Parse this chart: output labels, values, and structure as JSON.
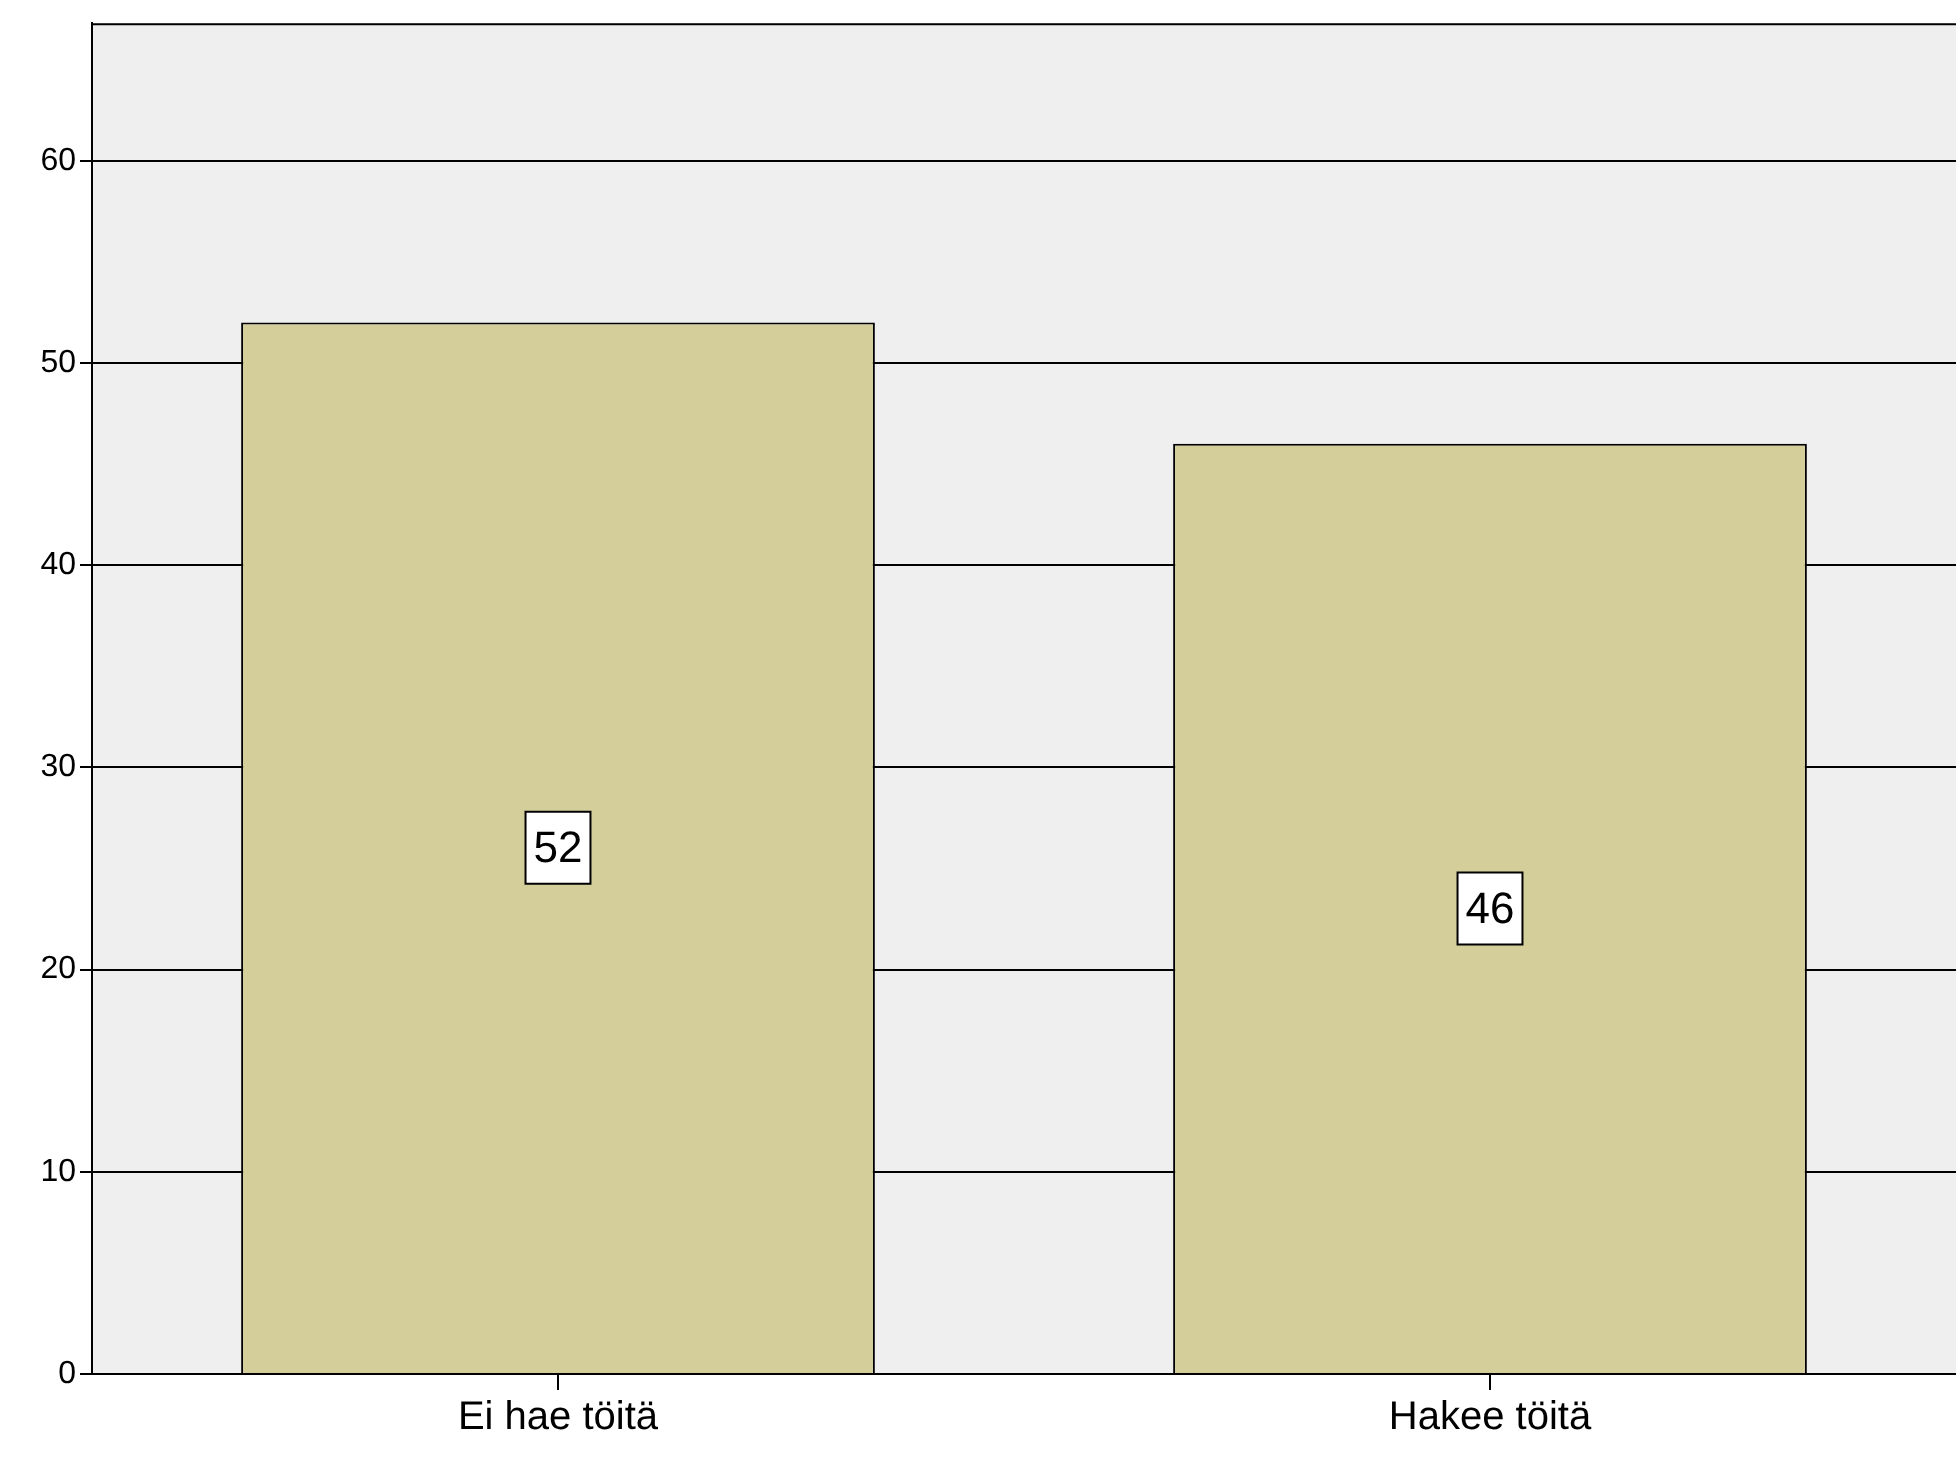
{
  "chart_data": {
    "type": "bar",
    "categories": [
      "Ei hae töitä",
      "Hakee töitä"
    ],
    "values": [
      52,
      46
    ],
    "color": "#d3ce9a",
    "ylim": [
      0,
      66.8
    ],
    "yticks": [
      0,
      10,
      20,
      30,
      40,
      50,
      60
    ],
    "grid": "y",
    "data_labels": true
  }
}
